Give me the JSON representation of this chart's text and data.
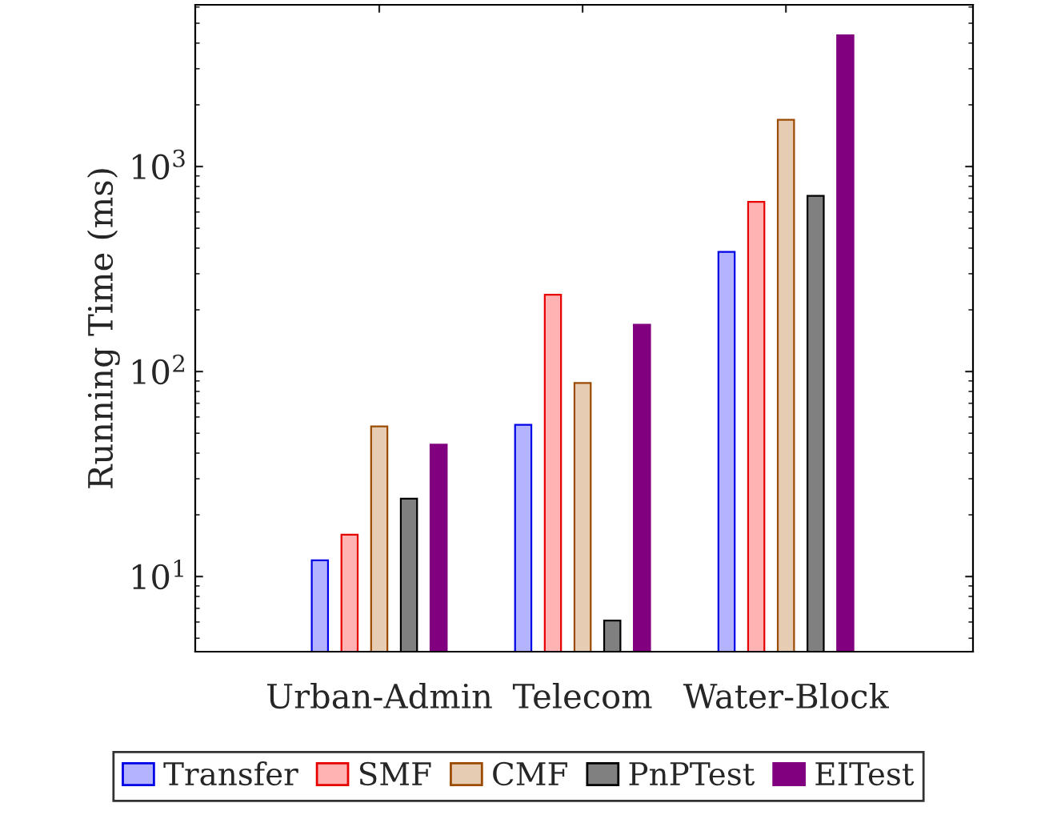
{
  "chart_data": {
    "type": "bar",
    "ylabel": "Running Time (ms)",
    "categories": [
      "Urban-Admin",
      "Telecom",
      "Water-Block"
    ],
    "series": [
      {
        "name": "Transfer",
        "color": "#b3b3ff",
        "values": [
          12,
          55,
          383
        ]
      },
      {
        "name": "SMF",
        "color": "#ffb3b3",
        "values": [
          16,
          237,
          672
        ]
      },
      {
        "name": "CMF",
        "color": "#e6ccb3",
        "values": [
          54,
          88,
          1690
        ]
      },
      {
        "name": "PnPTest",
        "color": "#808080",
        "values": [
          24,
          6.1,
          720
        ]
      },
      {
        "name": "EITest",
        "color": "#800080",
        "values": [
          44,
          169,
          4370
        ]
      }
    ],
    "log": true,
    "ylim": [
      4.3,
      6150
    ],
    "yticks": [
      {
        "value": 10,
        "label": "10$^{1}$"
      },
      {
        "value": 100,
        "label": "10$^{2}$"
      },
      {
        "value": 1000,
        "label": "10$^{3}$"
      }
    ],
    "grid": false,
    "legend": "bottom"
  }
}
